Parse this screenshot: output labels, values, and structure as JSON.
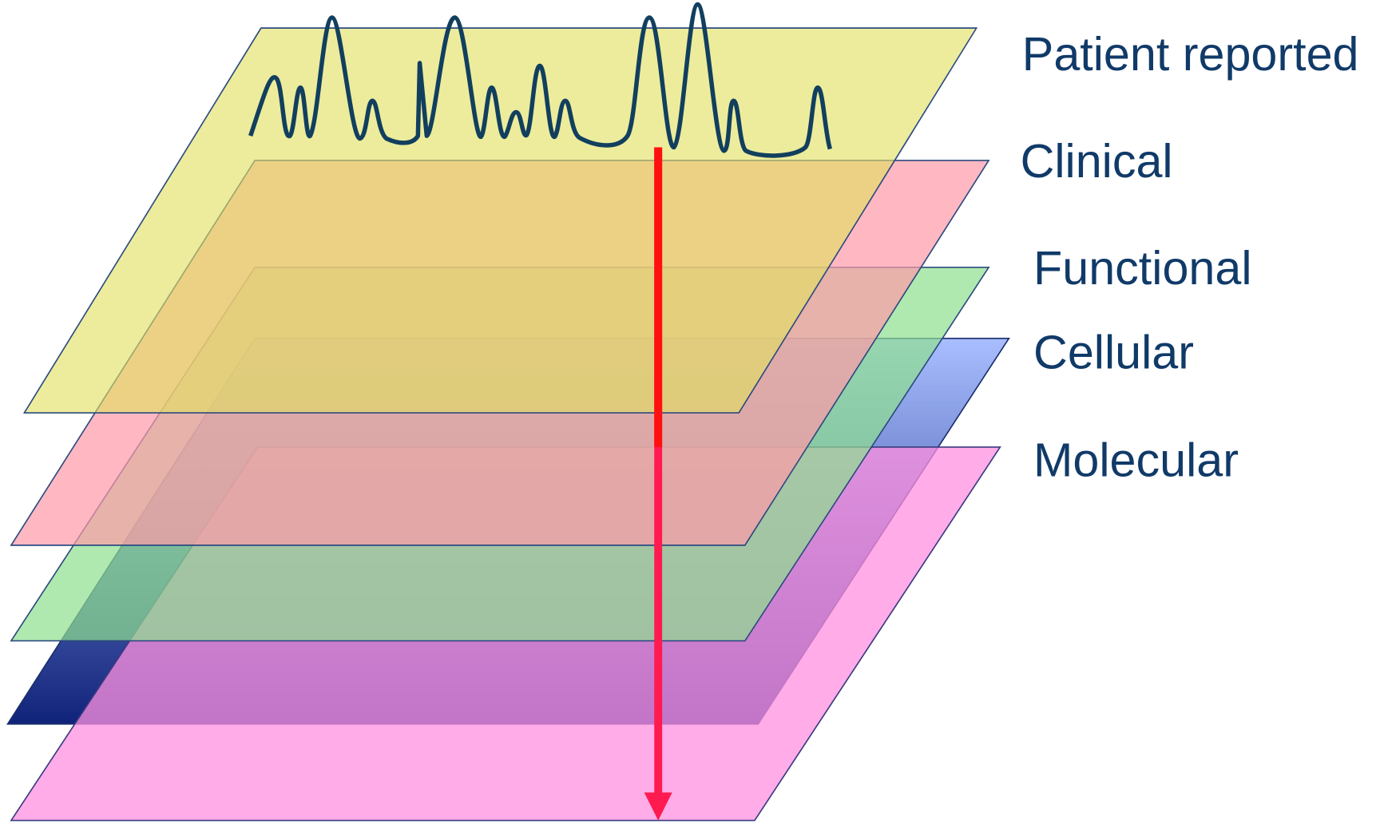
{
  "layers": [
    {
      "label": "Patient reported"
    },
    {
      "label": "Clinical"
    },
    {
      "label": "Functional"
    },
    {
      "label": "Cellular"
    },
    {
      "label": "Molecular"
    }
  ]
}
